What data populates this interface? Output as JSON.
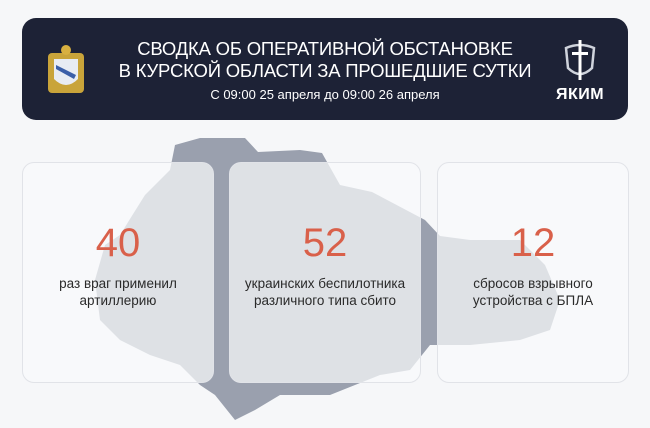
{
  "header": {
    "title_line1": "СВОДКА ОБ ОПЕРАТИВНОЙ ОБСТАНОВКЕ",
    "title_line2": "В КУРСКОЙ ОБЛАСТИ ЗА ПРОШЕДШИЕ СУТКИ",
    "subtitle": "С 09:00 25 апреля до 09:00 26 апреля",
    "logo_text": "ЯКИМ",
    "background": "#1d2236"
  },
  "stats": [
    {
      "value": "40",
      "line1": "раз враг применил",
      "line2": "артиллерию"
    },
    {
      "value": "52",
      "line1": "украинских беспилотника",
      "line2": "различного типа сбито"
    },
    {
      "value": "12",
      "line1": "сбросов взрывного",
      "line2": "устройства с БПЛА"
    }
  ],
  "colors": {
    "accent": "#d9604a",
    "map": "#9aa0ae"
  }
}
